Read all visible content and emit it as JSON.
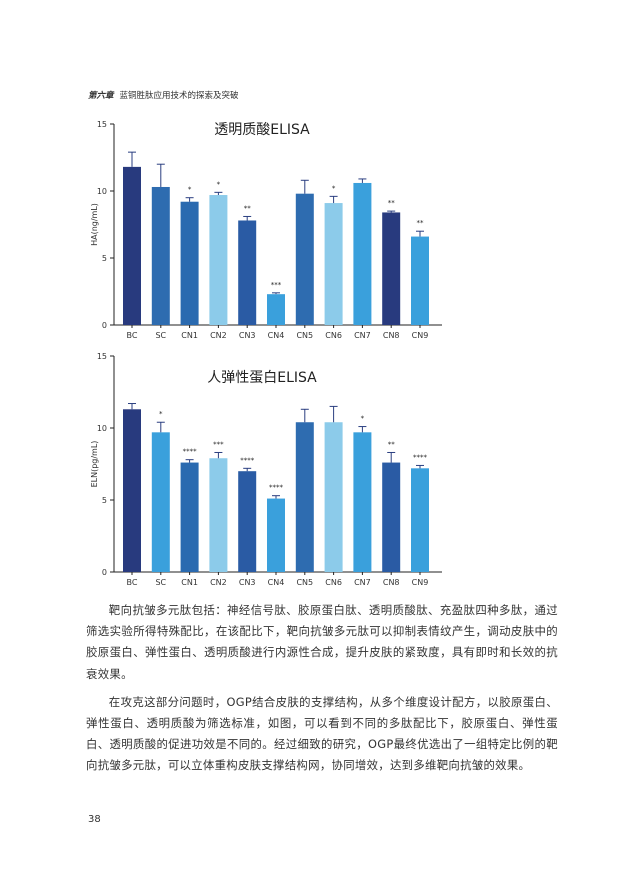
{
  "header": {
    "chapter": "第六章",
    "title": "蓝铜胜肽应用技术的探索及突破"
  },
  "chart_data": [
    {
      "type": "bar",
      "title": "透明质酸ELISA",
      "ylabel": "HA(ng/mL)",
      "xlabel": "",
      "categories": [
        "BC",
        "SC",
        "CN1",
        "CN2",
        "CN3",
        "CN4",
        "CN5",
        "CN6",
        "CN7",
        "CN8",
        "CN9"
      ],
      "values": [
        11.8,
        10.3,
        9.2,
        9.7,
        7.8,
        2.3,
        9.8,
        9.1,
        10.6,
        8.4,
        6.6
      ],
      "errors": [
        1.1,
        1.7,
        0.3,
        0.2,
        0.3,
        0.1,
        1.0,
        0.5,
        0.3,
        0.1,
        0.4
      ],
      "significance": [
        "",
        "",
        "*",
        "*",
        "**",
        "***",
        "",
        "*",
        "",
        "**",
        "**"
      ],
      "colors": [
        "#283a7e",
        "#2e6cb0",
        "#2a6ab0",
        "#8ccbea",
        "#2a5ba4",
        "#3aa0dc",
        "#2e6cb0",
        "#8ccbea",
        "#3aa0dc",
        "#283a7e",
        "#3aa0dc"
      ],
      "ylim": [
        0,
        15
      ],
      "yticks": [
        0,
        5,
        10,
        15
      ],
      "grid": false,
      "legend": "none"
    },
    {
      "type": "bar",
      "title": "人弹性蛋白ELISA",
      "ylabel": "ELN(pg/mL)",
      "xlabel": "",
      "categories": [
        "BC",
        "SC",
        "CN1",
        "CN2",
        "CN3",
        "CN4",
        "CN5",
        "CN6",
        "CN7",
        "CN8",
        "CN9"
      ],
      "values": [
        11.3,
        9.7,
        7.6,
        7.9,
        7.0,
        5.1,
        10.4,
        10.4,
        9.7,
        7.6,
        7.2
      ],
      "errors": [
        0.4,
        0.7,
        0.2,
        0.4,
        0.2,
        0.2,
        0.9,
        1.1,
        0.4,
        0.7,
        0.2
      ],
      "significance": [
        "",
        "*",
        "****",
        "***",
        "****",
        "****",
        "",
        "",
        "*",
        "**",
        "****"
      ],
      "colors": [
        "#283a7e",
        "#3aa0dc",
        "#2a6ab0",
        "#8ccbea",
        "#2a5ba4",
        "#3aa0dc",
        "#2e6cb0",
        "#8ccbea",
        "#3aa0dc",
        "#2a5ba4",
        "#3aa0dc"
      ],
      "ylim": [
        0,
        15
      ],
      "yticks": [
        0,
        5,
        10,
        15
      ],
      "grid": false,
      "legend": "none"
    }
  ],
  "body": {
    "p1": "靶向抗皱多元肽包括：神经信号肽、胶原蛋白肽、透明质酸肽、充盈肽四种多肽，通过筛选实验所得特殊配比，在该配比下，靶向抗皱多元肽可以抑制表情纹产生，调动皮肤中的胶原蛋白、弹性蛋白、透明质酸进行内源性合成，提升皮肤的紧致度，具有即时和长效的抗衰效果。",
    "p2": "在攻克这部分问题时，OGP结合皮肤的支撑结构，从多个维度设计配方，以胶原蛋白、弹性蛋白、透明质酸为筛选标准，如图，可以看到不同的多肽配比下，胶原蛋白、弹性蛋白、透明质酸的促进功效是不同的。经过细致的研究，OGP最终优选出了一组特定比例的靶向抗皱多元肽，可以立体重构皮肤支撑结构网，协同增效，达到多维靶向抗皱的效果。"
  },
  "page_number": "38"
}
